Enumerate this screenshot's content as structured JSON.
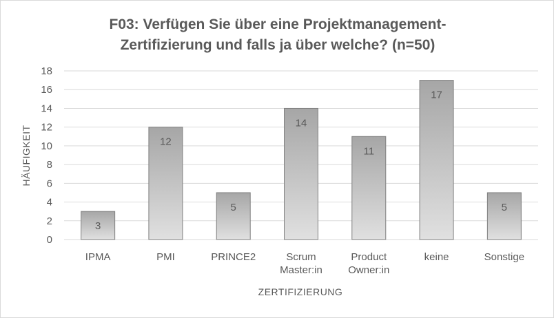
{
  "chart_data": {
    "type": "bar",
    "title_lines": [
      "F03: Verfügen Sie über eine Projektmanagement-",
      "Zertifizierung und falls ja über welche? (n=50)"
    ],
    "xlabel": "ZERTIFIZIERUNG",
    "ylabel": "HÄUFIGKEIT",
    "ylim": [
      0,
      18
    ],
    "yticks": [
      0,
      2,
      4,
      6,
      8,
      10,
      12,
      14,
      16,
      18
    ],
    "grid": true,
    "legend": false,
    "categories": [
      [
        "IPMA"
      ],
      [
        "PMI"
      ],
      [
        "PRINCE2"
      ],
      [
        "Scrum",
        "Master:in"
      ],
      [
        "Product",
        "Owner:in"
      ],
      [
        "keine"
      ],
      [
        "Sonstige"
      ]
    ],
    "values": [
      3,
      12,
      5,
      14,
      11,
      17,
      5
    ],
    "colors": {
      "bar_top": "#a6a6a6",
      "bar_bottom": "#e0e0e0",
      "bar_border": "#7f7f7f",
      "text": "#595959",
      "gridline": "#d9d9d9"
    }
  }
}
